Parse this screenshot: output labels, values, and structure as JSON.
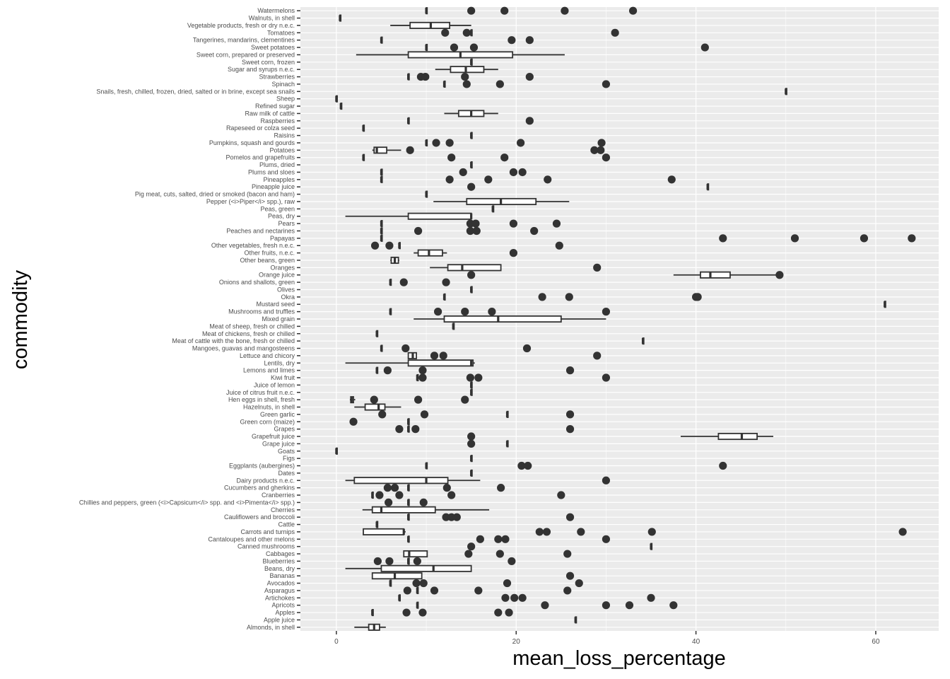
{
  "chart_data": {
    "type": "boxplot",
    "orientation": "horizontal",
    "xlabel": "mean_loss_percentage",
    "ylabel": "commodity",
    "xlim": [
      -4,
      67
    ],
    "xticks": [
      0,
      20,
      40,
      60
    ],
    "grid": true,
    "panel_background": "#ebebeb",
    "box_color": "#333333",
    "point_color": "#333333",
    "categories": [
      {
        "name": "Watermelons",
        "box": [
          10,
          10,
          10,
          10,
          10
        ],
        "outliers": [
          15,
          18.7,
          25.4,
          33
        ]
      },
      {
        "name": "Walnuts, in shell",
        "box": [
          0.4,
          0.4,
          0.4,
          0.4,
          0.4
        ],
        "outliers": []
      },
      {
        "name": "Vegetable products, fresh or dry n.e.c.",
        "box": [
          6,
          8.2,
          10.5,
          12.6,
          15
        ],
        "outliers": []
      },
      {
        "name": "Tomatoes",
        "box": [
          15,
          15,
          15,
          15,
          15
        ],
        "outliers": [
          12.1,
          14.5,
          31
        ]
      },
      {
        "name": "Tangerines, mandarins, clementines",
        "box": [
          5,
          5,
          5,
          5,
          5
        ],
        "outliers": [
          19.5,
          21.5
        ]
      },
      {
        "name": "Sweet potatoes",
        "box": [
          10,
          10,
          10,
          10,
          10
        ],
        "outliers": [
          13.1,
          15.3,
          41
        ]
      },
      {
        "name": "Sweet corn, prepared or preserved",
        "box": [
          2.2,
          8,
          13.8,
          19.6,
          25.4
        ],
        "outliers": []
      },
      {
        "name": "Sweet corn, frozen",
        "box": [
          15,
          15,
          15,
          15,
          15
        ],
        "outliers": []
      },
      {
        "name": "Sugar and syrups n.e.c.",
        "box": [
          11,
          12.7,
          14.4,
          16.4,
          18
        ],
        "outliers": []
      },
      {
        "name": "Strawberries",
        "box": [
          8,
          8,
          8,
          8,
          8
        ],
        "outliers": [
          9.4,
          9.9,
          14.3,
          21.5
        ]
      },
      {
        "name": "Spinach",
        "box": [
          12,
          12,
          12,
          12,
          12
        ],
        "outliers": [
          14.5,
          18.2,
          30
        ]
      },
      {
        "name": "Snails, fresh, chilled, frozen, dried, salted or in brine, except sea snails",
        "box": [
          50,
          50,
          50,
          50,
          50
        ],
        "outliers": []
      },
      {
        "name": "Sheep",
        "box": [
          0,
          0,
          0,
          0,
          0
        ],
        "outliers": []
      },
      {
        "name": "Refined sugar",
        "box": [
          0.5,
          0.5,
          0.5,
          0.5,
          0.5
        ],
        "outliers": []
      },
      {
        "name": "Raw milk of cattle",
        "box": [
          12,
          13.6,
          15,
          16.4,
          18
        ],
        "outliers": []
      },
      {
        "name": "Raspberries",
        "box": [
          8,
          8,
          8,
          8,
          8
        ],
        "outliers": [
          21.5
        ]
      },
      {
        "name": "Rapeseed or colza seed",
        "box": [
          3,
          3,
          3,
          3,
          3
        ],
        "outliers": []
      },
      {
        "name": "Raisins",
        "box": [
          15,
          15,
          15,
          15,
          15
        ],
        "outliers": []
      },
      {
        "name": "Pumpkins, squash and gourds",
        "box": [
          10,
          10,
          10,
          10,
          10
        ],
        "outliers": [
          11.1,
          12.6,
          20.5,
          29.5
        ]
      },
      {
        "name": "Potatoes",
        "box": [
          4,
          4.2,
          4.5,
          5.6,
          7.2
        ],
        "outliers": [
          8.2,
          28.7,
          29.4
        ]
      },
      {
        "name": "Pomelos and grapefruits",
        "box": [
          3,
          3,
          3,
          3,
          3
        ],
        "outliers": [
          12.8,
          18.7,
          30
        ]
      },
      {
        "name": "Plums, dried",
        "box": [
          15,
          15,
          15,
          15,
          15
        ],
        "outliers": []
      },
      {
        "name": "Plums and sloes",
        "box": [
          5,
          5,
          5,
          5,
          5
        ],
        "outliers": [
          14.1,
          19.7,
          20.7
        ]
      },
      {
        "name": "Pineapples",
        "box": [
          5,
          5,
          5,
          5,
          5
        ],
        "outliers": [
          12.6,
          16.9,
          23.5,
          37.3
        ]
      },
      {
        "name": "Pineapple juice",
        "box": [
          41.3,
          41.3,
          41.3,
          41.3,
          41.3
        ],
        "outliers": [
          15
        ]
      },
      {
        "name": "Pig meat, cuts, salted, dried or smoked (bacon and ham)",
        "box": [
          10,
          10,
          10,
          10,
          10
        ],
        "outliers": []
      },
      {
        "name": "Pepper (<i>Piper</i> spp.), raw",
        "box": [
          10.8,
          14.5,
          18.3,
          22.2,
          25.9
        ],
        "outliers": []
      },
      {
        "name": "Peas, green",
        "box": [
          17.4,
          17.4,
          17.4,
          17.4,
          17.4
        ],
        "outliers": []
      },
      {
        "name": "Peas, dry",
        "box": [
          1,
          8,
          15,
          15,
          15
        ],
        "outliers": []
      },
      {
        "name": "Pears",
        "box": [
          5,
          5,
          5,
          5,
          5
        ],
        "outliers": [
          14.9,
          15.5,
          19.7,
          24.5
        ]
      },
      {
        "name": "Peaches and nectarines",
        "box": [
          5,
          5,
          5,
          5,
          5
        ],
        "outliers": [
          9.1,
          14.9,
          15.6,
          22
        ]
      },
      {
        "name": "Papayas",
        "box": [
          5,
          5,
          5,
          5,
          5
        ],
        "outliers": [
          43,
          51,
          58.7,
          64
        ]
      },
      {
        "name": "Other vegetables, fresh n.e.c.",
        "box": [
          7,
          7,
          7,
          7,
          7
        ],
        "outliers": [
          4.3,
          5.9,
          24.8
        ]
      },
      {
        "name": "Other fruits, n.e.c.",
        "box": [
          8.6,
          9.1,
          10.3,
          11.8,
          12.3
        ],
        "outliers": [
          19.7
        ]
      },
      {
        "name": "Other beans, green",
        "box": [
          6,
          6.1,
          6.5,
          6.9,
          7
        ],
        "outliers": []
      },
      {
        "name": "Oranges",
        "box": [
          10.4,
          12.4,
          14,
          18.3,
          18.3
        ],
        "outliers": [
          29
        ]
      },
      {
        "name": "Orange juice",
        "box": [
          37.5,
          40.5,
          41.6,
          43.8,
          48.9
        ],
        "outliers": [
          15,
          49.3
        ]
      },
      {
        "name": "Onions and shallots, green",
        "box": [
          6,
          6,
          6,
          6,
          6
        ],
        "outliers": [
          7.5,
          12.2
        ]
      },
      {
        "name": "Olives",
        "box": [
          15,
          15,
          15,
          15,
          15
        ],
        "outliers": []
      },
      {
        "name": "Okra",
        "box": [
          12,
          12,
          12,
          12,
          12
        ],
        "outliers": [
          22.9,
          25.9,
          40,
          40.2
        ]
      },
      {
        "name": "Mustard seed",
        "box": [
          61,
          61,
          61,
          61,
          61
        ],
        "outliers": []
      },
      {
        "name": "Mushrooms and truffles",
        "box": [
          6,
          6,
          6,
          6,
          6
        ],
        "outliers": [
          11.3,
          14.3,
          17.3,
          30
        ]
      },
      {
        "name": "Mixed grain",
        "box": [
          8.6,
          12,
          18,
          25,
          30
        ],
        "outliers": []
      },
      {
        "name": "Meat of sheep, fresh or chilled",
        "box": [
          13,
          13,
          13,
          13,
          13
        ],
        "outliers": []
      },
      {
        "name": "Meat of chickens, fresh or chilled",
        "box": [
          4.5,
          4.5,
          4.5,
          4.5,
          4.5
        ],
        "outliers": []
      },
      {
        "name": "Meat of cattle with the bone, fresh or chilled",
        "box": [
          34.1,
          34.1,
          34.1,
          34.1,
          34.1
        ],
        "outliers": []
      },
      {
        "name": "Mangoes, guavas and mangosteens",
        "box": [
          5,
          5,
          5,
          5,
          5
        ],
        "outliers": [
          7.7,
          21.2
        ]
      },
      {
        "name": "Lettuce and chicory",
        "box": [
          8,
          8,
          8.5,
          8.9,
          8.9
        ],
        "outliers": [
          10.9,
          11.9,
          29
        ]
      },
      {
        "name": "Lentils, dry",
        "box": [
          1,
          8,
          15,
          15.2,
          15.4
        ],
        "outliers": []
      },
      {
        "name": "Lemons and limes",
        "box": [
          4.5,
          4.5,
          4.5,
          4.5,
          4.5
        ],
        "outliers": [
          5.7,
          9.6,
          26
        ]
      },
      {
        "name": "Kiwi fruit",
        "box": [
          9,
          9,
          9,
          9,
          9
        ],
        "outliers": [
          9.6,
          14.9,
          15.8,
          30
        ]
      },
      {
        "name": "Juice of lemon",
        "box": [
          15,
          15,
          15,
          15,
          15
        ],
        "outliers": []
      },
      {
        "name": "Juice of citrus fruit n.e.c.",
        "box": [
          15,
          15,
          15,
          15,
          15
        ],
        "outliers": []
      },
      {
        "name": "Hen eggs in shell, fresh",
        "box": [
          1.5,
          1.6,
          1.7,
          1.9,
          2.1
        ],
        "outliers": [
          4.2,
          9.1,
          14.3
        ]
      },
      {
        "name": "Hazelnuts, in shell",
        "box": [
          2,
          3.2,
          4.7,
          5.4,
          7.2
        ],
        "outliers": []
      },
      {
        "name": "Green garlic",
        "box": [
          19,
          19,
          19,
          19,
          19
        ],
        "outliers": [
          5.1,
          9.8,
          26
        ]
      },
      {
        "name": "Green corn (maize)",
        "box": [
          8,
          8,
          8,
          8,
          8
        ],
        "outliers": [
          1.9
        ]
      },
      {
        "name": "Grapes",
        "box": [
          8,
          8,
          8,
          8,
          8
        ],
        "outliers": [
          7,
          8.8,
          26
        ]
      },
      {
        "name": "Grapefruit juice",
        "box": [
          38.3,
          42.5,
          45.1,
          46.8,
          48.6
        ],
        "outliers": [
          15
        ]
      },
      {
        "name": "Grape juice",
        "box": [
          19,
          19,
          19,
          19,
          19
        ],
        "outliers": [
          15
        ]
      },
      {
        "name": "Goats",
        "box": [
          0,
          0,
          0,
          0,
          0
        ],
        "outliers": []
      },
      {
        "name": "Figs",
        "box": [
          15,
          15,
          15,
          15,
          15
        ],
        "outliers": []
      },
      {
        "name": "Eggplants (aubergines)",
        "box": [
          10,
          10,
          10,
          10,
          10
        ],
        "outliers": [
          20.6,
          21.3,
          43
        ]
      },
      {
        "name": "Dates",
        "box": [
          15,
          15,
          15,
          15,
          15
        ],
        "outliers": []
      },
      {
        "name": "Dairy products n.e.c.",
        "box": [
          1,
          2,
          10,
          12.4,
          16
        ],
        "outliers": [
          30
        ]
      },
      {
        "name": "Cucumbers and gherkins",
        "box": [
          8,
          8,
          8,
          8,
          8
        ],
        "outliers": [
          5.7,
          6.5,
          12.3,
          18.3
        ]
      },
      {
        "name": "Cranberries",
        "box": [
          4,
          4,
          4,
          4,
          4
        ],
        "outliers": [
          4.8,
          7,
          12.8,
          25
        ]
      },
      {
        "name": "Chillies and peppers, green (<i>Capsicum</i> spp. and <i>Pimenta</i> spp.)",
        "box": [
          8,
          8,
          8,
          8,
          8
        ],
        "outliers": [
          5.8,
          9.7
        ]
      },
      {
        "name": "Cherries",
        "box": [
          2.9,
          4,
          5,
          11,
          17
        ]
      },
      {
        "name": "Cauliflowers and broccoli",
        "box": [
          8,
          8,
          8,
          8,
          8
        ],
        "outliers": [
          12.2,
          12.8,
          13.4,
          26
        ]
      },
      {
        "name": "Cattle",
        "box": [
          4.5,
          4.5,
          4.5,
          4.5,
          4.5
        ],
        "outliers": []
      },
      {
        "name": "Carrots and turnips",
        "box": [
          3,
          3,
          7.5,
          7.5,
          7.7
        ],
        "outliers": [
          22.6,
          23.4,
          27.2,
          35.1,
          63
        ]
      },
      {
        "name": "Cantaloupes and other melons",
        "box": [
          8,
          8,
          8,
          8,
          8
        ],
        "outliers": [
          16,
          18,
          18.8,
          30
        ]
      },
      {
        "name": "Canned mushrooms",
        "box": [
          35,
          35,
          35,
          35,
          35
        ],
        "outliers": [
          15
        ]
      },
      {
        "name": "Cabbages",
        "box": [
          7.5,
          7.5,
          8.1,
          10.1,
          10.1
        ],
        "outliers": [
          14.7,
          18.2,
          25.7
        ]
      },
      {
        "name": "Blueberries",
        "box": [
          8,
          8,
          8,
          8,
          8
        ],
        "outliers": [
          4.6,
          5.9,
          9,
          19.5
        ]
      },
      {
        "name": "Beans, dry",
        "box": [
          1,
          5,
          10.8,
          15,
          15
        ],
        "outliers": []
      },
      {
        "name": "Bananas",
        "box": [
          4,
          4,
          6.5,
          9.5,
          9.5
        ],
        "outliers": [
          26
        ]
      },
      {
        "name": "Avocados",
        "box": [
          6,
          6,
          6,
          6,
          6
        ],
        "outliers": [
          8.9,
          9.7,
          19,
          27
        ]
      },
      {
        "name": "Asparagus",
        "box": [
          9,
          9,
          9,
          9,
          9
        ],
        "outliers": [
          7.9,
          10.9,
          15.8,
          25.7
        ]
      },
      {
        "name": "Artichokes",
        "box": [
          7,
          7,
          7,
          7,
          7
        ],
        "outliers": [
          18.8,
          19.8,
          20.7,
          35
        ]
      },
      {
        "name": "Apricots",
        "box": [
          9,
          9,
          9,
          9,
          9
        ],
        "outliers": [
          23.2,
          30,
          32.6,
          37.5
        ]
      },
      {
        "name": "Apples",
        "box": [
          4,
          4,
          4,
          4,
          4
        ],
        "outliers": [
          7.8,
          9.6,
          18,
          19.2
        ]
      },
      {
        "name": "Apple juice",
        "box": [
          26.6,
          26.6,
          26.6,
          26.6,
          26.6
        ],
        "outliers": []
      },
      {
        "name": "Almonds, in shell",
        "box": [
          2,
          3.6,
          4.2,
          4.8,
          5.5
        ],
        "outliers": []
      }
    ]
  }
}
